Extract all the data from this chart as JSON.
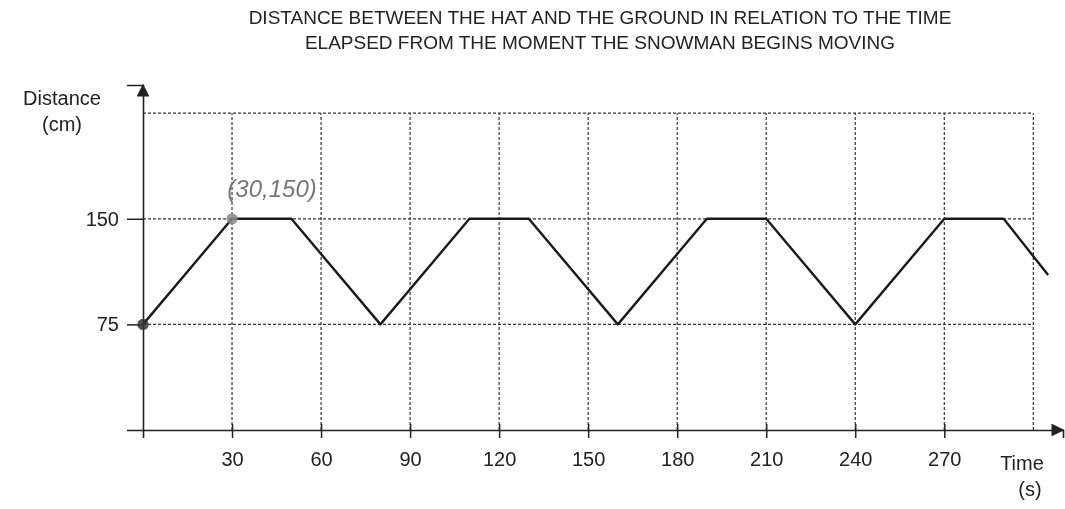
{
  "chart_data": {
    "type": "line",
    "title": "DISTANCE BETWEEN THE HAT AND THE GROUND IN RELATION TO THE TIME ELAPSED FROM THE MOMENT THE SNOWMAN BEGINS MOVING",
    "xlabel": "Time (s)",
    "ylabel": "Distance (cm)",
    "xlim": [
      0,
      310
    ],
    "ylim": [
      0,
      245
    ],
    "xticks": [
      30,
      60,
      90,
      120,
      150,
      180,
      210,
      240,
      270,
      {
        "value": 300,
        "label": null
      }
    ],
    "yticks": [
      75,
      150,
      {
        "value": 225,
        "label": null
      }
    ],
    "grid": true,
    "line_style": "solid",
    "series": [
      {
        "color": "#1a1a1a",
        "marker": "none",
        "x": [
          0,
          30,
          50,
          80,
          110,
          130,
          160,
          190,
          210,
          240,
          270,
          290,
          305
        ],
        "values": [
          75,
          150,
          150,
          75,
          150,
          150,
          75,
          150,
          150,
          75,
          150,
          150,
          110
        ]
      },
      {
        "type": "scatter",
        "marker": "circle",
        "colors": [
          "#333333",
          "#8a8a8a"
        ],
        "x": [
          0,
          30
        ],
        "values": [
          75,
          150
        ]
      }
    ],
    "annotations": [
      {
        "text": "(30,150)",
        "x": 30,
        "y": 150
      }
    ]
  }
}
